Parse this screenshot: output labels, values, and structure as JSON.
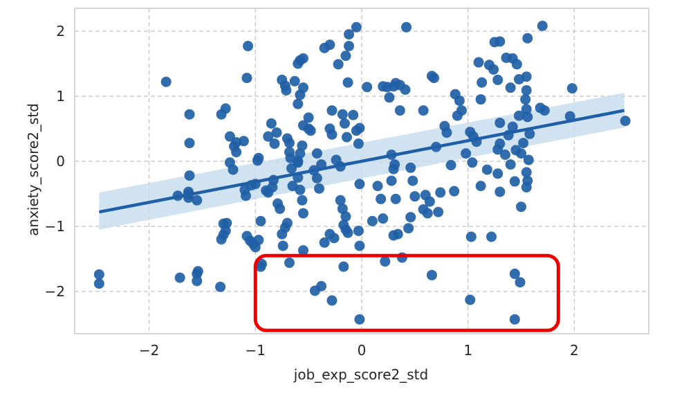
{
  "chart_data": {
    "type": "scatter",
    "title": "",
    "xlabel": "job_exp_score2_std",
    "ylabel": "anxiety_score2_std",
    "xlim": [
      -2.7,
      2.7
    ],
    "ylim": [
      -2.65,
      2.35
    ],
    "xticks": [
      -2,
      -1,
      0,
      1,
      2
    ],
    "xtick_labels": [
      "−2",
      "−1",
      "0",
      "1",
      "2"
    ],
    "yticks": [
      -2,
      -1,
      0,
      1,
      2
    ],
    "ytick_labels": [
      "−2",
      "−1",
      "0",
      "1",
      "2"
    ],
    "grid": true,
    "point_color": "#1f5fa6",
    "fit_color": "#1f5fa6",
    "ci_color": "#c6dbee",
    "annotation_color": "#ee0000",
    "regression": {
      "x": [
        -2.47,
        2.47
      ],
      "y": [
        -0.78,
        0.78
      ],
      "ci_lower": [
        -1.05,
        0.52
      ],
      "ci_upper": [
        -0.48,
        1.05
      ]
    },
    "highlight_box": {
      "x": [
        -1.0,
        1.85
      ],
      "y": [
        -2.6,
        -1.45
      ]
    },
    "points": [
      [
        -2.47,
        -1.74
      ],
      [
        -2.47,
        -1.88
      ],
      [
        -1.84,
        1.22
      ],
      [
        -1.73,
        -0.53
      ],
      [
        -1.71,
        -1.79
      ],
      [
        -1.55,
        -1.84
      ],
      [
        -1.55,
        -1.73
      ],
      [
        -1.54,
        -1.69
      ],
      [
        -1.55,
        -0.6
      ],
      [
        -1.63,
        -0.51
      ],
      [
        -1.63,
        -0.47
      ],
      [
        -1.63,
        -0.56
      ],
      [
        -1.62,
        0.72
      ],
      [
        -1.62,
        0.28
      ],
      [
        -1.62,
        -0.22
      ],
      [
        -1.33,
        -1.93
      ],
      [
        -1.28,
        -1.07
      ],
      [
        -1.3,
        -1.13
      ],
      [
        -1.32,
        -1.2
      ],
      [
        -1.3,
        -0.96
      ],
      [
        -1.27,
        -0.95
      ],
      [
        -1.32,
        0.72
      ],
      [
        -1.28,
        0.81
      ],
      [
        -1.24,
        0.38
      ],
      [
        -1.18,
        0.29
      ],
      [
        -1.18,
        0.14
      ],
      [
        -1.2,
        0.23
      ],
      [
        -1.24,
        -0.02
      ],
      [
        -1.21,
        -0.13
      ],
      [
        -1.1,
        -0.44
      ],
      [
        -1.09,
        -0.53
      ],
      [
        -1.04,
        -0.37
      ],
      [
        -1.0,
        -0.35
      ],
      [
        -0.98,
        0.01
      ],
      [
        -0.97,
        0.05
      ],
      [
        -1.11,
        0.31
      ],
      [
        -1.08,
        -1.15
      ],
      [
        -1.05,
        -1.22
      ],
      [
        -1.02,
        -1.27
      ],
      [
        -1.0,
        -1.32
      ],
      [
        -0.97,
        -1.21
      ],
      [
        -0.95,
        -0.92
      ],
      [
        -0.94,
        -1.58
      ],
      [
        -0.95,
        -1.62
      ],
      [
        -1.07,
        1.77
      ],
      [
        -1.08,
        1.28
      ],
      [
        -0.88,
        -0.48
      ],
      [
        -0.84,
        -0.4
      ],
      [
        -0.83,
        -0.29
      ],
      [
        -0.9,
        -0.45
      ],
      [
        -0.88,
        0.38
      ],
      [
        -0.85,
        0.58
      ],
      [
        -0.82,
        0.27
      ],
      [
        -0.8,
        0.44
      ],
      [
        -0.79,
        -0.65
      ],
      [
        -0.77,
        -0.73
      ],
      [
        -0.75,
        -1.12
      ],
      [
        -0.74,
        -1.3
      ],
      [
        -0.72,
        -1.02
      ],
      [
        -0.7,
        -0.95
      ],
      [
        -0.68,
        -1.56
      ],
      [
        -0.75,
        1.25
      ],
      [
        -0.72,
        1.16
      ],
      [
        -0.71,
        1.09
      ],
      [
        -0.7,
        0.35
      ],
      [
        -0.68,
        0.28
      ],
      [
        -0.68,
        0.14
      ],
      [
        -0.67,
        0.05
      ],
      [
        -0.66,
        -0.11
      ],
      [
        -0.65,
        -0.38
      ],
      [
        -0.6,
        -0.02
      ],
      [
        -0.6,
        0.0
      ],
      [
        -0.58,
        0.12
      ],
      [
        -0.56,
        0.24
      ],
      [
        -0.55,
        0.55
      ],
      [
        -0.6,
        0.88
      ],
      [
        -0.58,
        1.02
      ],
      [
        -0.55,
        1.13
      ],
      [
        -0.6,
        1.5
      ],
      [
        -0.58,
        1.55
      ],
      [
        -0.55,
        1.58
      ],
      [
        -0.63,
        1.23
      ],
      [
        -0.6,
        -0.25
      ],
      [
        -0.58,
        -0.44
      ],
      [
        -0.56,
        -0.6
      ],
      [
        -0.55,
        -0.8
      ],
      [
        -0.55,
        -1.37
      ],
      [
        -0.5,
        0.5
      ],
      [
        -0.5,
        0.67
      ],
      [
        -0.48,
        0.47
      ],
      [
        -0.45,
        -0.14
      ],
      [
        -0.42,
        -0.26
      ],
      [
        -0.4,
        -0.42
      ],
      [
        -0.42,
        0.12
      ],
      [
        -0.38,
        -0.05
      ],
      [
        -0.35,
        1.74
      ],
      [
        -0.3,
        1.79
      ],
      [
        -0.28,
        0.78
      ],
      [
        -0.3,
        0.5
      ],
      [
        -0.28,
        0.41
      ],
      [
        -0.24,
        0.02
      ],
      [
        -0.2,
        -0.08
      ],
      [
        -0.18,
        0.72
      ],
      [
        -0.16,
        0.58
      ],
      [
        -0.14,
        0.37
      ],
      [
        -0.2,
        -0.6
      ],
      [
        -0.18,
        -0.73
      ],
      [
        -0.15,
        -0.85
      ],
      [
        -0.17,
        -0.98
      ],
      [
        -0.15,
        -1.05
      ],
      [
        -0.13,
        -1.1
      ],
      [
        -0.3,
        -1.12
      ],
      [
        -0.26,
        -1.18
      ],
      [
        -0.35,
        -1.25
      ],
      [
        -0.44,
        -1.99
      ],
      [
        -0.38,
        -1.92
      ],
      [
        -0.28,
        -2.14
      ],
      [
        -0.17,
        -1.62
      ],
      [
        -0.22,
        1.49
      ],
      [
        -0.15,
        1.62
      ],
      [
        -0.12,
        1.77
      ],
      [
        -0.12,
        1.95
      ],
      [
        -0.05,
        2.06
      ],
      [
        -0.13,
        1.21
      ],
      [
        -0.08,
        0.71
      ],
      [
        -0.05,
        0.47
      ],
      [
        -0.02,
        0.51
      ],
      [
        -0.03,
        0.27
      ],
      [
        -0.02,
        -0.35
      ],
      [
        -0.03,
        -1.07
      ],
      [
        -0.02,
        -1.3
      ],
      [
        -0.02,
        -2.43
      ],
      [
        0.05,
        1.14
      ],
      [
        0.1,
        -0.92
      ],
      [
        0.15,
        -0.38
      ],
      [
        0.18,
        -0.58
      ],
      [
        0.2,
        -0.88
      ],
      [
        0.22,
        -1.54
      ],
      [
        0.2,
        1.15
      ],
      [
        0.24,
        1.14
      ],
      [
        0.26,
        0.98
      ],
      [
        0.3,
        1.15
      ],
      [
        0.32,
        1.2
      ],
      [
        0.36,
        1.17
      ],
      [
        0.41,
        1.1
      ],
      [
        0.42,
        2.06
      ],
      [
        0.36,
        0.78
      ],
      [
        0.28,
        0.1
      ],
      [
        0.31,
        -0.05
      ],
      [
        0.3,
        -0.12
      ],
      [
        0.28,
        -0.3
      ],
      [
        0.32,
        -0.58
      ],
      [
        0.34,
        -1.12
      ],
      [
        0.3,
        -1.14
      ],
      [
        0.38,
        -1.48
      ],
      [
        0.44,
        -1.03
      ],
      [
        0.46,
        -0.86
      ],
      [
        0.5,
        -0.54
      ],
      [
        0.48,
        -0.3
      ],
      [
        0.46,
        -0.1
      ],
      [
        0.6,
        -0.52
      ],
      [
        0.58,
        -0.74
      ],
      [
        0.62,
        -0.8
      ],
      [
        0.64,
        -0.62
      ],
      [
        0.66,
        -1.75
      ],
      [
        0.58,
        0.78
      ],
      [
        0.66,
        1.31
      ],
      [
        0.68,
        1.28
      ],
      [
        0.7,
        0.22
      ],
      [
        0.72,
        -0.78
      ],
      [
        0.74,
        -0.48
      ],
      [
        0.78,
        0.54
      ],
      [
        0.8,
        0.44
      ],
      [
        0.84,
        -0.06
      ],
      [
        0.88,
        1.03
      ],
      [
        0.92,
        0.93
      ],
      [
        0.94,
        0.78
      ],
      [
        0.9,
        0.7
      ],
      [
        0.87,
        -0.46
      ],
      [
        0.98,
        0.12
      ],
      [
        1.02,
        0.45
      ],
      [
        1.05,
        0.38
      ],
      [
        1.08,
        0.3
      ],
      [
        1.04,
        -0.02
      ],
      [
        1.03,
        -1.16
      ],
      [
        1.02,
        -2.13
      ],
      [
        1.1,
        1.52
      ],
      [
        1.13,
        1.21
      ],
      [
        1.12,
        0.95
      ],
      [
        1.12,
        -0.38
      ],
      [
        1.18,
        -0.13
      ],
      [
        1.2,
        1.48
      ],
      [
        1.24,
        1.41
      ],
      [
        1.25,
        1.83
      ],
      [
        1.3,
        1.84
      ],
      [
        1.28,
        1.25
      ],
      [
        1.3,
        0.59
      ],
      [
        1.3,
        0.27
      ],
      [
        1.28,
        0.18
      ],
      [
        1.28,
        -0.19
      ],
      [
        1.3,
        -0.47
      ],
      [
        1.22,
        -1.16
      ],
      [
        1.36,
        1.59
      ],
      [
        1.42,
        1.58
      ],
      [
        1.46,
        1.49
      ],
      [
        1.48,
        1.26
      ],
      [
        1.4,
        1.13
      ],
      [
        1.42,
        0.53
      ],
      [
        1.38,
        0.4
      ],
      [
        1.35,
        0.1
      ],
      [
        1.4,
        -0.05
      ],
      [
        1.44,
        -0.31
      ],
      [
        1.45,
        0.17
      ],
      [
        1.5,
        0.12
      ],
      [
        1.52,
        0.28
      ],
      [
        1.48,
        0.7
      ],
      [
        1.55,
        0.8
      ],
      [
        1.56,
        0.68
      ],
      [
        1.54,
        0.95
      ],
      [
        1.55,
        1.09
      ],
      [
        1.55,
        1.3
      ],
      [
        1.56,
        1.89
      ],
      [
        1.7,
        2.08
      ],
      [
        1.58,
        0.42
      ],
      [
        1.57,
        0.02
      ],
      [
        1.55,
        -0.17
      ],
      [
        1.56,
        -0.3
      ],
      [
        1.55,
        -0.4
      ],
      [
        1.5,
        -0.7
      ],
      [
        1.44,
        -1.73
      ],
      [
        1.49,
        -1.86
      ],
      [
        1.44,
        -2.43
      ],
      [
        1.68,
        0.82
      ],
      [
        1.72,
        0.78
      ],
      [
        1.96,
        0.69
      ],
      [
        1.98,
        1.12
      ],
      [
        2.48,
        0.62
      ]
    ]
  }
}
